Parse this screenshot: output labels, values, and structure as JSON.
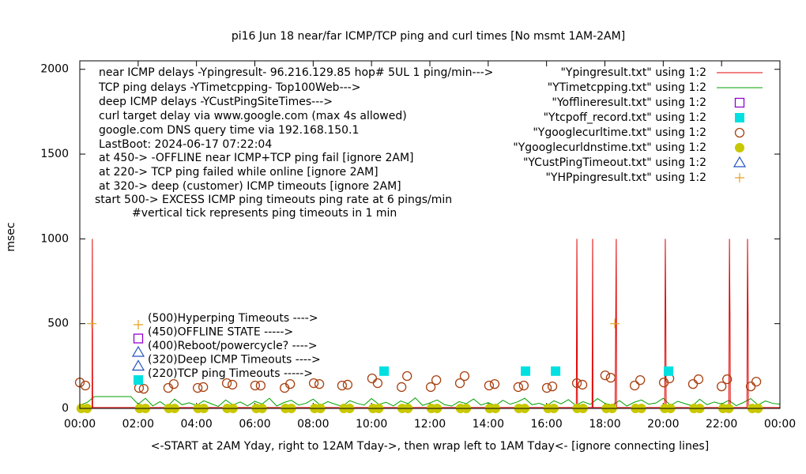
{
  "chart_data": {
    "type": "line",
    "title": "pi16 Jun 18  near/far ICMP/TCP ping and curl times [No msmt 1AM-2AM]",
    "y_label": "msec",
    "x_label": "<-START at 2AM Yday, right to 12AM Tday->, then wrap left to 1AM Tday<- [ignore connecting lines]",
    "xlim": [
      0,
      24
    ],
    "xticks": [
      {
        "value": 0,
        "label": "00:00"
      },
      {
        "value": 2,
        "label": "02:00"
      },
      {
        "value": 4,
        "label": "04:00"
      },
      {
        "value": 6,
        "label": "06:00"
      },
      {
        "value": 8,
        "label": "08:00"
      },
      {
        "value": 10,
        "label": "10:00"
      },
      {
        "value": 12,
        "label": "12:00"
      },
      {
        "value": 14,
        "label": "14:00"
      },
      {
        "value": 16,
        "label": "16:00"
      },
      {
        "value": 18,
        "label": "18:00"
      },
      {
        "value": 20,
        "label": "20:00"
      },
      {
        "value": 22,
        "label": "22:00"
      },
      {
        "value": 24,
        "label": "00:00"
      }
    ],
    "ylim": [
      0,
      2050
    ],
    "yticks": [
      0,
      500,
      1000,
      1500,
      2000
    ],
    "annotations": [
      "near ICMP delays -Ypingresult- 96.216.129.85 hop# 5UL 1 ping/min--->",
      "TCP ping delays -YTimetcpping- Top100Web--->",
      "deep ICMP delays -YCustPingSiteTimes--->",
      "curl target delay via www.google.com (max 4s allowed)",
      "google.com DNS query time via 192.168.150.1",
      "LastBoot: 2024-06-17 07:22:04",
      "at 450-> -OFFLINE near ICMP+TCP ping fail [ignore 2AM]",
      "at 220-> TCP ping failed while online [ignore 2AM]",
      "at 320-> deep (customer) ICMP timeouts [ignore 2AM]",
      "start 500-> EXCESS ICMP ping timeouts ping rate at 6 pings/min",
      "#vertical tick represents ping timeouts in 1 min"
    ],
    "key_notes": [
      {
        "label": "(500)Hyperping Timeouts ---->",
        "marker": "plus",
        "color": "#e8a020"
      },
      {
        "label": "(450)OFFLINE STATE ----->",
        "marker": "square",
        "color": "#9400d3"
      },
      {
        "label": "(400)Reboot/powercycle? ---->",
        "marker": "triangle",
        "color": "#2050c0"
      },
      {
        "label": "(320)Deep ICMP Timeouts ---->",
        "marker": "triangle",
        "color": "#2050c0"
      },
      {
        "label": "(220)TCP ping Timeouts ----->",
        "marker": "filled-square",
        "color": "#00e0e0"
      }
    ],
    "series": [
      {
        "name": "\"Ypingresult.txt\" using 1:2",
        "color": "#e00000",
        "style": "lines",
        "x": [
          0,
          0.42,
          0.43,
          0.44,
          17.02,
          17.04,
          17.05,
          17.06,
          17.56,
          17.58,
          17.59,
          18.35,
          18.37,
          18.39,
          18.4,
          20.05,
          20.07,
          20.09,
          20.1,
          22.25,
          22.27,
          22.29,
          22.3,
          22.87,
          22.89,
          22.91,
          22.92,
          24
        ],
        "values": [
          5,
          5,
          1000,
          5,
          5,
          1000,
          500,
          5,
          5,
          1000,
          5,
          5,
          500,
          1000,
          5,
          5,
          1000,
          500,
          5,
          5,
          1000,
          500,
          5,
          5,
          1000,
          500,
          5,
          5
        ]
      },
      {
        "name": "\"YTimetcpping.txt\" using 1:2",
        "color": "#00a000",
        "style": "lines",
        "x": [
          0,
          0.25,
          0.5,
          0.75,
          1,
          1.25,
          1.5,
          1.75,
          2,
          2.25,
          2.5,
          2.75,
          3,
          3.25,
          3.5,
          3.75,
          4,
          4.25,
          4.5,
          4.75,
          5,
          5.25,
          5.5,
          5.75,
          6,
          6.25,
          6.5,
          6.75,
          7,
          7.25,
          7.5,
          7.75,
          8,
          8.25,
          8.5,
          8.75,
          9,
          9.25,
          9.5,
          9.75,
          10,
          10.25,
          10.5,
          10.75,
          11,
          11.25,
          11.5,
          11.75,
          12,
          12.25,
          12.5,
          12.75,
          13,
          13.25,
          13.5,
          13.75,
          14,
          14.25,
          14.5,
          14.75,
          15,
          15.25,
          15.5,
          15.75,
          16,
          16.25,
          16.5,
          16.75,
          17,
          17.25,
          17.5,
          17.75,
          18,
          18.25,
          18.5,
          18.75,
          19,
          19.25,
          19.5,
          19.75,
          20,
          20.25,
          20.5,
          20.75,
          21,
          21.25,
          21.5,
          21.75,
          22,
          22.25,
          22.5,
          22.75,
          23,
          23.25,
          23.5,
          23.75,
          24
        ],
        "values": [
          20,
          35,
          70,
          70,
          70,
          70,
          70,
          70,
          25,
          60,
          15,
          40,
          10,
          55,
          22,
          33,
          18,
          45,
          28,
          12,
          50,
          20,
          38,
          15,
          42,
          26,
          60,
          14,
          35,
          48,
          20,
          30,
          55,
          18,
          40,
          25,
          12,
          46,
          30,
          20,
          58,
          24,
          36,
          15,
          44,
          28,
          62,
          18,
          32,
          50,
          22,
          14,
          40,
          28,
          56,
          20,
          34,
          16,
          48,
          25,
          38,
          60,
          22,
          30,
          15,
          45,
          27,
          52,
          18,
          40,
          24,
          58,
          30,
          20,
          46,
          14,
          36,
          50,
          25,
          32,
          60,
          18,
          42,
          28,
          15,
          54,
          22,
          38,
          26,
          48,
          16,
          35,
          58,
          20,
          44,
          30,
          25
        ]
      },
      {
        "name": "\"Yofflineresult.txt\" using 1:2",
        "color": "#9400d3",
        "style": "points",
        "marker": "square",
        "x": [],
        "values": []
      },
      {
        "name": "\"Ytcpoff_record.txt\" using 1:2",
        "color": "#00e0e0",
        "style": "points",
        "marker": "filled-square",
        "x": [
          10.43,
          15.28,
          16.31,
          20.18
        ],
        "values": [
          220,
          220,
          220,
          220
        ]
      },
      {
        "name": "\"Ygooglecurltime.txt\" using 1:2",
        "color": "#a84010",
        "style": "points",
        "marker": "circle",
        "x": [
          0.0,
          0.19,
          2.03,
          2.19,
          3.03,
          3.22,
          4.04,
          4.23,
          5.04,
          5.23,
          6.01,
          6.2,
          7.02,
          7.21,
          8.02,
          8.21,
          8.99,
          9.18,
          10.02,
          10.21,
          11.03,
          11.22,
          12.03,
          12.22,
          13.03,
          13.19,
          14.03,
          14.22,
          15.03,
          15.22,
          16.01,
          16.2,
          17.04,
          17.23,
          18.01,
          18.2,
          19.02,
          19.21,
          20.02,
          20.21,
          21.02,
          21.21,
          22.0,
          22.19,
          23.0,
          23.19
        ],
        "values": [
          153,
          135,
          121,
          116,
          121,
          144,
          121,
          126,
          149,
          140,
          135,
          135,
          121,
          144,
          149,
          144,
          135,
          140,
          177,
          149,
          126,
          191,
          126,
          167,
          149,
          191,
          135,
          144,
          126,
          135,
          121,
          130,
          149,
          140,
          195,
          181,
          135,
          167,
          153,
          177,
          144,
          172,
          130,
          172,
          130,
          158
        ]
      },
      {
        "name": "\"Ygooglecurldnstime.txt\" using 1:2",
        "color": "#c8c800",
        "style": "points",
        "marker": "filled-circle",
        "x": [
          0.05,
          0.25,
          2.05,
          2.25,
          3.05,
          3.25,
          4.05,
          4.25,
          5.05,
          5.25,
          6.05,
          6.25,
          7.05,
          7.25,
          8.05,
          8.25,
          9.05,
          9.25,
          10.05,
          10.25,
          11.05,
          11.25,
          12.05,
          12.25,
          13.05,
          13.25,
          14.05,
          14.25,
          15.05,
          15.25,
          16.05,
          16.25,
          17.05,
          17.25,
          18.05,
          18.25,
          19.05,
          19.25,
          20.05,
          20.25,
          21.05,
          21.25,
          22.05,
          22.25,
          23.05,
          23.25
        ],
        "values": [
          0,
          0,
          0,
          0,
          0,
          0,
          0,
          0,
          0,
          0,
          0,
          0,
          0,
          0,
          0,
          0,
          0,
          0,
          0,
          0,
          0,
          0,
          0,
          0,
          0,
          0,
          0,
          0,
          0,
          0,
          0,
          0,
          0,
          0,
          0,
          0,
          0,
          0,
          0,
          0,
          0,
          0,
          0,
          0,
          0,
          0
        ]
      },
      {
        "name": "\"YCustPingTimeout.txt\" using 1:2",
        "color": "#2050c0",
        "style": "points",
        "marker": "triangle",
        "x": [],
        "values": []
      },
      {
        "name": "\"YHPpingresult.txt\" using 1:2",
        "color": "#e8a020",
        "style": "points",
        "marker": "plus",
        "x": [
          0.41,
          18.34
        ],
        "values": [
          500,
          500
        ]
      }
    ]
  }
}
